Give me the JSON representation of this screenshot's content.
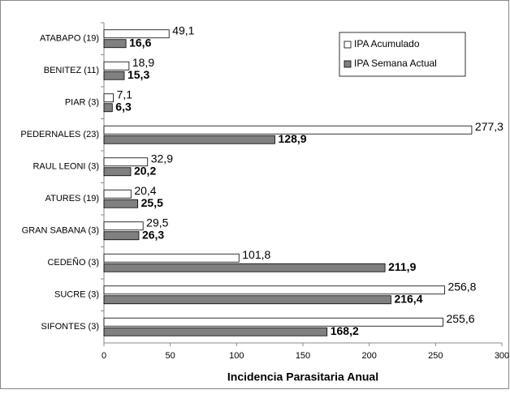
{
  "chart_data": {
    "type": "hbar",
    "x_label": "Incidencia Parasitaria Anual",
    "categories": [
      "ATABAPO (19)",
      "BENITEZ (11)",
      "PIAR (3)",
      "PEDERNALES (23)",
      "RAUL LEONI (3)",
      "ATURES (19)",
      "GRAN SABANA (3)",
      "CEDEÑO (3)",
      "SUCRE (3)",
      "SIFONTES (3)"
    ],
    "series": [
      {
        "name": "IPA Acumulado",
        "color": "#ffffff",
        "values": [
          49.1,
          18.9,
          7.1,
          277.3,
          32.9,
          20.4,
          29.5,
          101.8,
          256.8,
          255.6
        ],
        "value_labels": [
          "49,1",
          "18,9",
          "7,1",
          "277,3",
          "32,9",
          "20,4",
          "29,5",
          "101,8",
          "256,8",
          "255,6"
        ]
      },
      {
        "name": "IPA Semana Actual",
        "color": "#808080",
        "values": [
          16.6,
          15.3,
          6.3,
          128.9,
          20.2,
          25.5,
          26.3,
          211.9,
          216.4,
          168.2
        ],
        "value_labels": [
          "16,6",
          "15,3",
          "6,3",
          "128,9",
          "20,2",
          "25,5",
          "26,3",
          "211,9",
          "216,4",
          "168,2"
        ]
      }
    ],
    "xlim": [
      0,
      300
    ],
    "xticks": [
      0,
      50,
      100,
      150,
      200,
      250,
      300
    ],
    "legend": "top-right"
  }
}
